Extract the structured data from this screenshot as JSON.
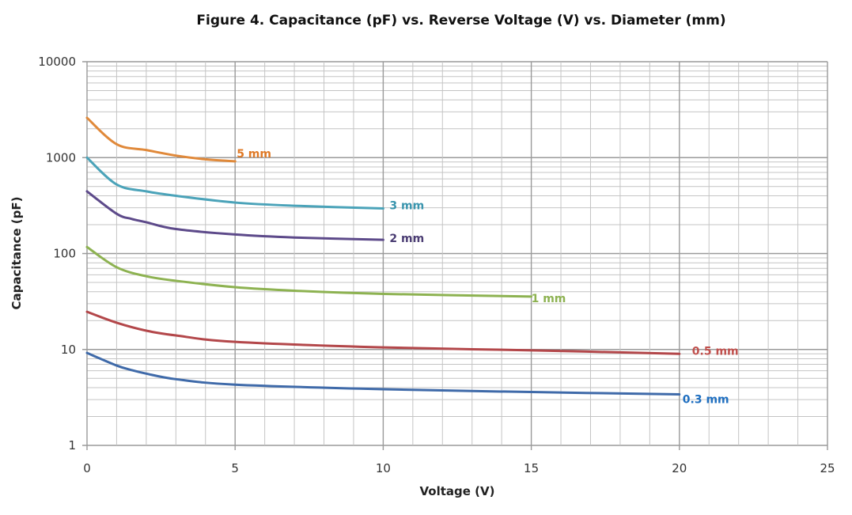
{
  "chart_data": {
    "type": "line",
    "title": "Figure 4. Capacitance (pF) vs. Reverse Voltage (V) vs. Diameter (mm)",
    "xlabel": "Voltage (V)",
    "ylabel": "Capacitance (pF)",
    "xlim": [
      0,
      25
    ],
    "ylim": [
      1,
      10000
    ],
    "yscale": "log",
    "grid": true,
    "legend": "inline labels at line ends",
    "x_ticks": [
      "0",
      "5",
      "10",
      "15",
      "20",
      "25"
    ],
    "y_ticks": [
      "1",
      "10",
      "100",
      "1000",
      "10000"
    ],
    "series": [
      {
        "name": "5 mm",
        "color": "#e0893a",
        "label_color": "#e07a26",
        "x": [
          0,
          1,
          2,
          3,
          4,
          5
        ],
        "y": [
          2600,
          1380,
          1200,
          1050,
          960,
          915
        ]
      },
      {
        "name": "3 mm",
        "color": "#4ba3b9",
        "label_color": "#3a95ae",
        "x": [
          0,
          1,
          2,
          3,
          5,
          7,
          10
        ],
        "y": [
          1000,
          525,
          445,
          400,
          340,
          315,
          295
        ]
      },
      {
        "name": "2 mm",
        "color": "#5d4a8a",
        "label_color": "#4b3d73",
        "x": [
          0,
          1,
          1.5,
          2,
          3,
          5,
          7,
          10
        ],
        "y": [
          445,
          260,
          230,
          212,
          180,
          158,
          147,
          139
        ]
      },
      {
        "name": "1 mm",
        "color": "#8db251",
        "label_color": "#8db251",
        "x": [
          0,
          1,
          2,
          3,
          5,
          7,
          10,
          15
        ],
        "y": [
          117,
          72,
          58,
          52,
          44.6,
          41,
          38,
          35.6
        ]
      },
      {
        "name": "0.5 mm",
        "color": "#b3474a",
        "label_color": "#c0504d",
        "x": [
          0,
          1,
          2,
          3,
          5,
          10,
          15,
          20
        ],
        "y": [
          24.7,
          19,
          15.7,
          14,
          12,
          10.5,
          9.8,
          9.0
        ]
      },
      {
        "name": "0.3 mm",
        "color": "#3f6aa9",
        "label_color": "#1f6fc0",
        "x": [
          0,
          1,
          1.5,
          2,
          3,
          5,
          10,
          15,
          20
        ],
        "y": [
          9.2,
          6.8,
          6.1,
          5.6,
          4.9,
          4.3,
          3.85,
          3.6,
          3.4
        ]
      }
    ]
  }
}
